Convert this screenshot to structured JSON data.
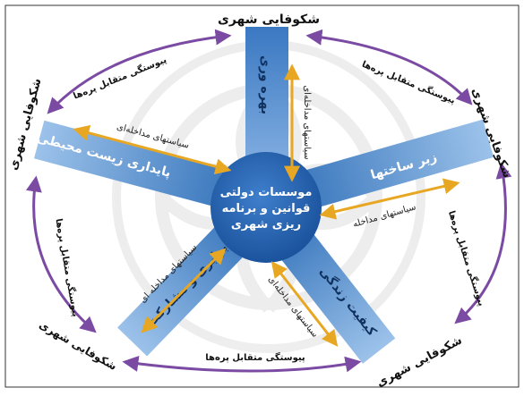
{
  "diagram": {
    "center_label": {
      "line1": "موسسات دولتی",
      "line2": "قوانین و برنامه",
      "line3": "ریزی شهری"
    },
    "spokes": [
      {
        "label": "بهره وری"
      },
      {
        "label": "زیر ساختها"
      },
      {
        "label": "کیفیت زندگی"
      },
      {
        "label": "برابری و مشارکت"
      },
      {
        "label": "پایداری زیست محیطی"
      }
    ],
    "outer_nodes": [
      {
        "label": "شکوفایی شهری"
      },
      {
        "label": "شکوفایی شهری"
      },
      {
        "label": "شکوفایی شهری"
      },
      {
        "label": "شکوفایی شهری"
      },
      {
        "label": "شکوفایی شهری"
      }
    ],
    "arc_labels": [
      {
        "label": "پیوستگی متقابل پره‌ها"
      },
      {
        "label": "پیوستگی متقابل پره‌ها"
      },
      {
        "label": "پیوستگی متقابل پره‌ها"
      },
      {
        "label": "پیوستگی متقابل پره‌ها"
      },
      {
        "label": "پیوستگی متقابل پره‌ها"
      }
    ],
    "policy_labels": [
      {
        "label": "سیاستهای مداخله‌ای"
      },
      {
        "label": "سیاستهای مداخله"
      },
      {
        "label": "سیاستهای مداخله‌ای"
      },
      {
        "label": "سیاستهای مداخله ای"
      },
      {
        "label": "سیاستهای مداخله‌ای"
      }
    ],
    "colors": {
      "spoke": "#2f6fb8",
      "spoke_light": "#8fb8e6",
      "hub": "#1f5fae",
      "arrow_gold": "#e8a722",
      "arc_purple": "#7b4aa3",
      "watermark": "#e6e6e6"
    }
  }
}
